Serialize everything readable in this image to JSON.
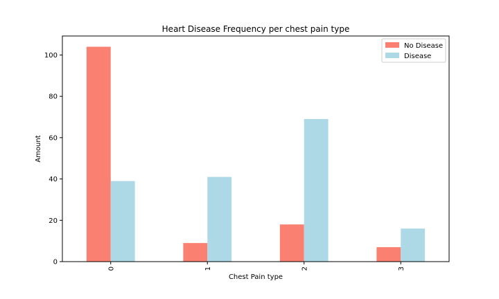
{
  "chart_data": {
    "type": "bar",
    "title": "Heart Disease Frequency per chest pain type",
    "xlabel": "Chest Pain type",
    "ylabel": "Amount",
    "categories": [
      "0",
      "1",
      "2",
      "3"
    ],
    "series": [
      {
        "name": "No Disease",
        "values": [
          104,
          9,
          18,
          7
        ],
        "color": "#fa8072"
      },
      {
        "name": "Disease",
        "values": [
          39,
          41,
          69,
          16
        ],
        "color": "#add8e6"
      }
    ],
    "ylim": [
      0,
      109.2
    ],
    "yticks": [
      0,
      20,
      40,
      60,
      80,
      100
    ],
    "xtick_rotation": "vertical",
    "grid": false,
    "legend_position": "top-right"
  }
}
